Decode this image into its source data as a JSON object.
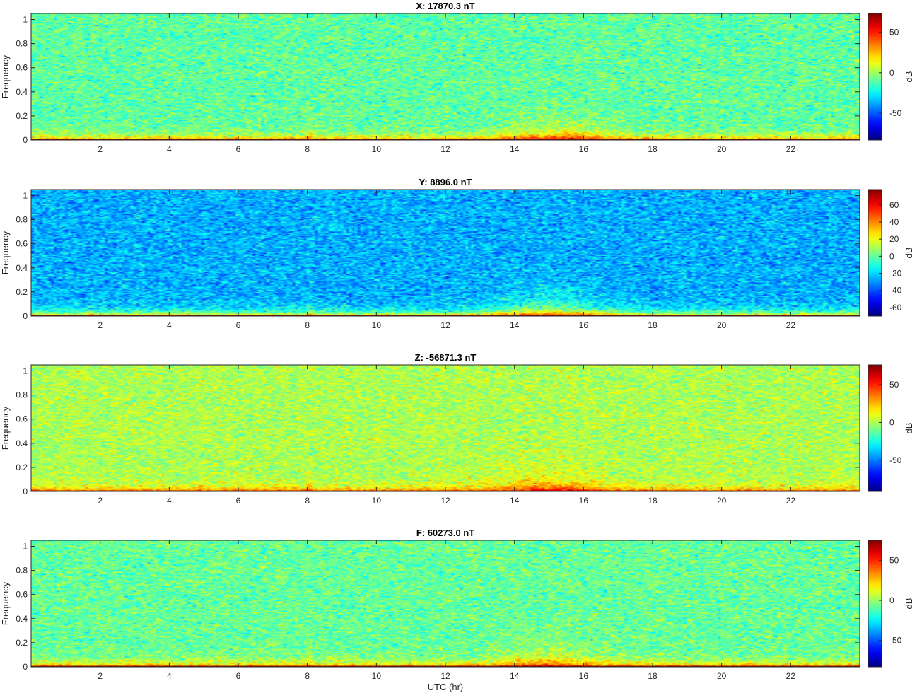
{
  "chart_data": {
    "type": "heatmap",
    "xlabel": "UTC (hr)",
    "ylabel": "Frequency",
    "colorbar_label": "dB",
    "colormap": "jet",
    "xlim": [
      0,
      24
    ],
    "ylim": [
      0,
      1.05
    ],
    "x_ticks": [
      2,
      4,
      6,
      8,
      10,
      12,
      14,
      16,
      18,
      20,
      22
    ],
    "y_ticks": [
      0,
      0.2,
      0.4,
      0.6,
      0.8,
      1
    ],
    "panels": [
      {
        "title": "X: 17870.3 nT",
        "color_range": [
          -83,
          73
        ],
        "colorbar_ticks": [
          50,
          0,
          -50
        ],
        "background_level_db": -10,
        "low_freq_level_db": 35,
        "bottom_band_db": 70,
        "daytime_peak_db": 18,
        "daytime_peak_hr": 15.3
      },
      {
        "title": "Y: 8896.0 nT",
        "color_range": [
          -70,
          78
        ],
        "colorbar_ticks": [
          60,
          40,
          20,
          0,
          -20,
          -40,
          -60
        ],
        "background_level_db": -26,
        "low_freq_level_db": 35,
        "bottom_band_db": 75,
        "daytime_peak_db": 10,
        "daytime_peak_hr": 15.0
      },
      {
        "title": "Z: -56871.3 nT",
        "color_range": [
          -91,
          76
        ],
        "colorbar_ticks": [
          50,
          0,
          -50
        ],
        "background_level_db": 0,
        "low_freq_level_db": 40,
        "bottom_band_db": 72,
        "daytime_peak_db": 28,
        "daytime_peak_hr": 15.0
      },
      {
        "title": "F: 60273.0 nT",
        "color_range": [
          -83,
          75
        ],
        "colorbar_ticks": [
          50,
          0,
          -50
        ],
        "background_level_db": -8,
        "low_freq_level_db": 38,
        "bottom_band_db": 72,
        "daytime_peak_db": 18,
        "daytime_peak_hr": 15.0
      }
    ]
  }
}
